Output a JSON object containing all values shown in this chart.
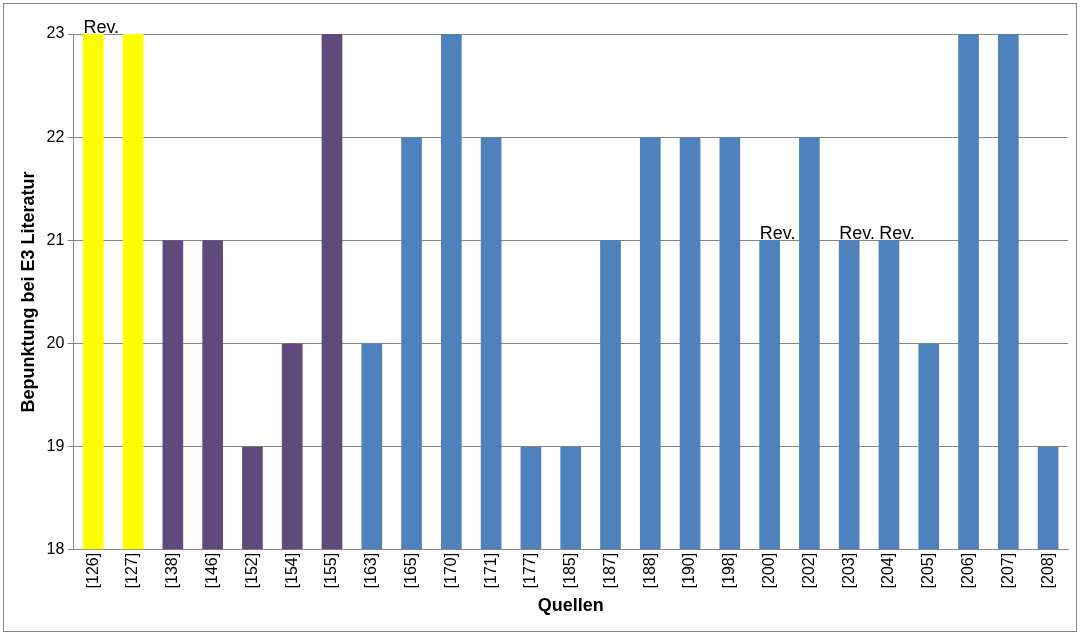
{
  "chart_data": {
    "type": "bar",
    "xlabel": "Quellen",
    "ylabel": "Bepunktung bei E3 Literatur",
    "categories": [
      "[126]",
      "[127]",
      "[138]",
      "[146]",
      "[152]",
      "[154]",
      "[155]",
      "[163]",
      "[165]",
      "[170]",
      "[171]",
      "[177]",
      "[185]",
      "[187]",
      "[188]",
      "[190]",
      "[198]",
      "[200]",
      "[202]",
      "[203]",
      "[204]",
      "[205]",
      "[206]",
      "[207]",
      "[208]"
    ],
    "values": [
      23,
      23,
      21,
      21,
      19,
      20,
      23,
      20,
      22,
      23,
      22,
      19,
      19,
      21,
      22,
      22,
      22,
      21,
      22,
      21,
      21,
      20,
      23,
      23,
      19
    ],
    "colors": [
      "#ffff00",
      "#ffff00",
      "#604a7b",
      "#604a7b",
      "#604a7b",
      "#604a7b",
      "#604a7b",
      "#4f81bd",
      "#4f81bd",
      "#4f81bd",
      "#4f81bd",
      "#4f81bd",
      "#4f81bd",
      "#4f81bd",
      "#4f81bd",
      "#4f81bd",
      "#4f81bd",
      "#4f81bd",
      "#4f81bd",
      "#4f81bd",
      "#4f81bd",
      "#4f81bd",
      "#4f81bd",
      "#4f81bd",
      "#4f81bd"
    ],
    "ylim": [
      18,
      23
    ],
    "yticks": [
      18,
      19,
      20,
      21,
      22,
      23
    ],
    "grid": "y",
    "legend": false,
    "annotations": [
      {
        "text": "Rev.",
        "x": "[126]",
        "y": 23
      },
      {
        "text": "Rev.",
        "x": "[200]",
        "y": 21
      },
      {
        "text": "Rev.",
        "x": "[203]",
        "y": 21
      },
      {
        "text": "Rev.",
        "x": "[204]",
        "y": 21
      }
    ]
  }
}
